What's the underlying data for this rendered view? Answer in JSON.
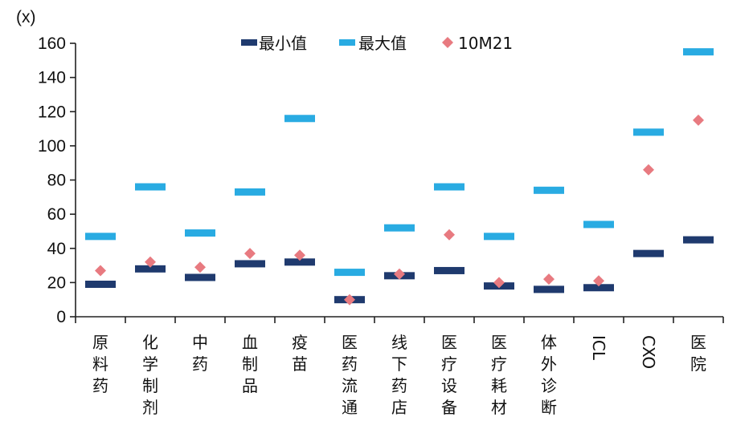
{
  "chart_data": {
    "type": "scatter",
    "unit_label": "(x)",
    "ylim": [
      0,
      160
    ],
    "yticks": [
      0,
      20,
      40,
      60,
      80,
      100,
      120,
      140,
      160
    ],
    "grid": false,
    "legend_position": "top-center",
    "categories": [
      "原料药",
      "化学制剂",
      "中药",
      "血制品",
      "疫苗",
      "医药流通",
      "线下药店",
      "医疗设备",
      "医疗耗材",
      "体外诊断",
      "ICL",
      "CXO",
      "医院"
    ],
    "series": [
      {
        "name": "最小值",
        "marker": "dash",
        "color": "#1f3a6e",
        "values": [
          19,
          28,
          23,
          31,
          32,
          10,
          24,
          27,
          18,
          16,
          17,
          37,
          45
        ]
      },
      {
        "name": "最大值",
        "marker": "dash",
        "color": "#29abe2",
        "values": [
          47,
          76,
          49,
          73,
          116,
          26,
          52,
          76,
          47,
          74,
          54,
          108,
          155
        ]
      },
      {
        "name": "10M21",
        "marker": "diamond",
        "color": "#e87a80",
        "values": [
          27,
          32,
          29,
          37,
          36,
          10,
          25,
          48,
          20,
          22,
          21,
          86,
          115
        ]
      }
    ]
  }
}
